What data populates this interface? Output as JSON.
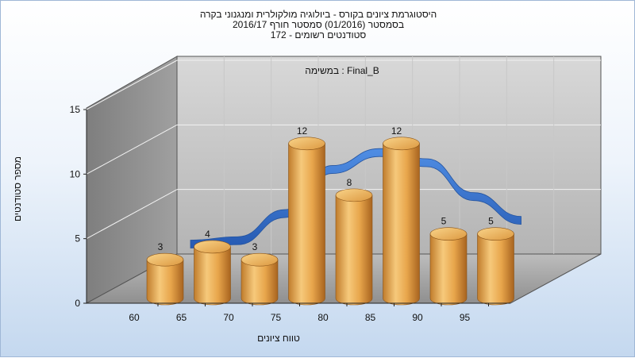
{
  "chart": {
    "title_lines": [
      "היסטוגרמת ציונים בקורס - ביולוגיה מולקולרית ומנגנוני בקרה",
      "בסמסטר  (01/2016)  סמסטר חורף 2016/17",
      "סטודנטים רשומים - 172"
    ],
    "ylabel": "מספר סטודנטים",
    "xlabel": "טווח ציונים",
    "task_label": "במשימה : Final_B"
  },
  "chart_data": {
    "type": "bar",
    "categories": [
      "60",
      "65",
      "70",
      "75",
      "80",
      "85",
      "90",
      "95"
    ],
    "values": [
      3,
      4,
      3,
      12,
      8,
      12,
      5,
      5
    ],
    "x_ticks": [
      "60",
      "65",
      "70",
      "75",
      "80",
      "85",
      "90",
      "95"
    ],
    "y_ticks": [
      0,
      5,
      10,
      15
    ],
    "ylim": [
      0,
      15
    ],
    "data_labels": true,
    "overlay": "smoothed distribution curve (3D ribbon)",
    "grid": true,
    "colors": {
      "bar": "#e8a64c",
      "bar_top": "#f7cb79",
      "curve": "#2f6ecf",
      "floor": "#9e9e9e",
      "back_wall": "#bdbdbd",
      "side_wall": "#8f8f8f"
    }
  }
}
